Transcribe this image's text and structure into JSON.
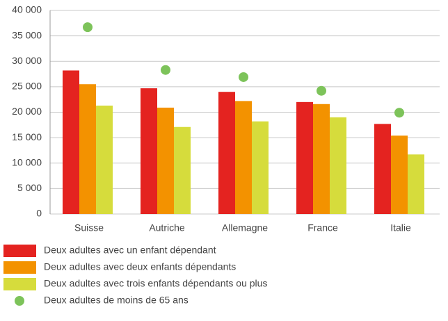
{
  "chart_data": {
    "type": "bar",
    "categories": [
      "Suisse",
      "Autriche",
      "Allemagne",
      "France",
      "Italie"
    ],
    "series": [
      {
        "name": "Deux adultes avec un enfant dépendant",
        "color": "#e42320",
        "type": "bar",
        "values": [
          28200,
          24700,
          24000,
          22000,
          17700
        ]
      },
      {
        "name": "Deux adultes avec deux enfants dépendants",
        "color": "#f39200",
        "type": "bar",
        "values": [
          25500,
          20900,
          22200,
          21600,
          15400
        ]
      },
      {
        "name": "Deux adultes avec trois enfants dépendants ou plus",
        "color": "#d6dc3c",
        "type": "bar",
        "values": [
          21300,
          17100,
          18200,
          19000,
          11700
        ]
      },
      {
        "name": "Deux adultes de moins de 65 ans",
        "color": "#7dc35a",
        "type": "scatter",
        "values": [
          36700,
          28300,
          26900,
          24200,
          19900
        ]
      }
    ],
    "ylim": [
      0,
      40000
    ],
    "yticks": [
      0,
      {
        "value": 5000,
        "label": "5 000"
      },
      {
        "value": 10000,
        "label": "10 000"
      },
      {
        "value": 15000,
        "label": "15 000"
      },
      {
        "value": 20000,
        "label": "20 000"
      },
      {
        "value": 25000,
        "label": "25 000"
      },
      {
        "value": 30000,
        "label": "30 000"
      },
      {
        "value": 35000,
        "label": "35 000"
      },
      {
        "value": 40000,
        "label": "40 000"
      }
    ],
    "grid": true,
    "legend": "bottom"
  }
}
